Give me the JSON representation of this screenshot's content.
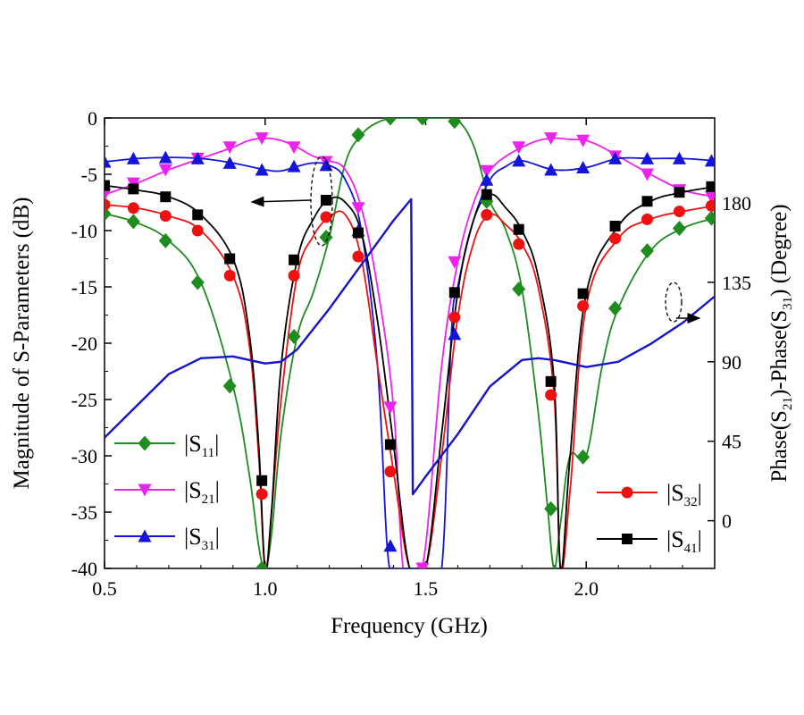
{
  "chart_data": {
    "type": "line",
    "title": "",
    "xlabel": "Frequency (GHz)",
    "ylabel_left": "Magnitude of S-Parameters (dB)",
    "ylabel_right_parts": {
      "a": "Phase(S",
      "a_sub": "21",
      "b": ")-Phase(S",
      "b_sub": "31",
      "c": ")  (Degree)"
    },
    "xlim": [
      0.5,
      2.4
    ],
    "ylim_left": [
      -40,
      0
    ],
    "ylim_right": [
      -27,
      228
    ],
    "x_ticks": [
      "0.5",
      "1.0",
      "1.5",
      "2.0"
    ],
    "x_tick_values": [
      0.5,
      1.0,
      1.5,
      2.0
    ],
    "y_left_ticks": [
      "0",
      "-5",
      "-10",
      "-15",
      "-20",
      "-25",
      "-30",
      "-35",
      "-40"
    ],
    "y_left_tick_values": [
      0,
      -5,
      -10,
      -15,
      -20,
      -25,
      -30,
      -35,
      -40
    ],
    "y_right_ticks": [
      "180",
      "135",
      "90",
      "45",
      "0"
    ],
    "y_right_tick_values": [
      180,
      135,
      90,
      45,
      0
    ],
    "series": [
      {
        "name": "|S11|",
        "label": "S",
        "sub": "11",
        "color": "#1e8c1e",
        "marker": "diamond",
        "axis": "left",
        "x": [
          0.5,
          0.6,
          0.7,
          0.8,
          0.9,
          0.95,
          0.98,
          1.0,
          1.02,
          1.05,
          1.1,
          1.15,
          1.2,
          1.25,
          1.3,
          1.35,
          1.4,
          1.45,
          1.5,
          1.55,
          1.6,
          1.65,
          1.7,
          1.75,
          1.8,
          1.85,
          1.88,
          1.9,
          1.92,
          1.95,
          2.0,
          2.05,
          2.1,
          2.2,
          2.3,
          2.4
        ],
        "y": [
          -8.5,
          -9.3,
          -10.9,
          -14.6,
          -23.8,
          -31.5,
          -38,
          -40,
          -37,
          -28,
          -19.4,
          -15.5,
          -10.6,
          -4,
          -1.5,
          -0.4,
          0,
          0,
          0,
          0,
          -0.2,
          -2.5,
          -7.4,
          -10,
          -15.2,
          -26,
          -34.7,
          -40,
          -36,
          -30,
          -30,
          -22,
          -16.9,
          -11.8,
          -9.8,
          -8.9
        ],
        "marker_x": [
          0.5,
          0.59,
          0.69,
          0.79,
          0.89,
          0.99,
          1.09,
          1.19,
          1.29,
          1.39,
          1.49,
          1.59,
          1.69,
          1.79,
          1.89,
          1.99,
          2.09,
          2.19,
          2.29,
          2.39
        ],
        "marker_y": [
          -8.5,
          -9.2,
          -10.9,
          -14.6,
          -23.8,
          -40,
          -19.4,
          -10.6,
          -1.5,
          0,
          0,
          -0.3,
          -7.4,
          -15.2,
          -34.7,
          -30.1,
          -16.9,
          -11.8,
          -9.8,
          -8.9
        ]
      },
      {
        "name": "|S21|",
        "label": "S",
        "sub": "21",
        "color": "#ee22ee",
        "marker": "triangle-down",
        "axis": "left",
        "x": [
          0.5,
          0.6,
          0.7,
          0.8,
          0.9,
          0.95,
          1.0,
          1.05,
          1.1,
          1.15,
          1.2,
          1.25,
          1.3,
          1.35,
          1.4,
          1.43,
          1.47,
          1.5,
          1.55,
          1.6,
          1.65,
          1.7,
          1.75,
          1.8,
          1.85,
          1.9,
          1.95,
          2.0,
          2.05,
          2.1,
          2.2,
          2.3,
          2.4
        ],
        "y": [
          -6.8,
          -5.8,
          -4.6,
          -3.6,
          -2.6,
          -2.0,
          -1.8,
          -2.0,
          -2.6,
          -3.4,
          -3.8,
          -4.6,
          -8,
          -15,
          -25.7,
          -40,
          -40,
          -38,
          -22,
          -12.8,
          -7.5,
          -4.7,
          -3.4,
          -2.6,
          -2.0,
          -1.8,
          -1.9,
          -2.0,
          -2.6,
          -3.4,
          -5.0,
          -6.4,
          -7.0
        ],
        "marker_x": [
          0.5,
          0.59,
          0.69,
          0.79,
          0.89,
          0.99,
          1.09,
          1.19,
          1.29,
          1.39,
          1.49,
          1.59,
          1.69,
          1.79,
          1.89,
          1.99,
          2.09,
          2.19,
          2.29,
          2.39
        ],
        "marker_y": [
          -6.8,
          -5.8,
          -4.6,
          -3.6,
          -2.6,
          -1.8,
          -2.6,
          -3.9,
          -8,
          -25.7,
          -40,
          -12.8,
          -4.7,
          -2.6,
          -1.8,
          -2.0,
          -3.4,
          -5.0,
          -6.4,
          -7.0
        ]
      },
      {
        "name": "|S31|",
        "label": "S",
        "sub": "31",
        "color": "#1414dc",
        "marker": "triangle-up",
        "axis": "left",
        "x": [
          0.5,
          0.6,
          0.7,
          0.8,
          0.9,
          1.0,
          1.05,
          1.1,
          1.15,
          1.2,
          1.25,
          1.3,
          1.35,
          1.38,
          1.4,
          1.43,
          1.5,
          1.55,
          1.58,
          1.6,
          1.65,
          1.7,
          1.75,
          1.8,
          1.9,
          2.0,
          2.1,
          2.2,
          2.3,
          2.4
        ],
        "y": [
          -3.9,
          -3.6,
          -3.5,
          -3.6,
          -4.0,
          -4.6,
          -4.7,
          -4.3,
          -4.0,
          -4.2,
          -5.5,
          -10,
          -22,
          -38,
          -40,
          -40,
          -40,
          -40,
          -19.2,
          -15,
          -9,
          -5.5,
          -4.3,
          -3.8,
          -4.6,
          -4.4,
          -3.6,
          -3.6,
          -3.6,
          -3.8
        ],
        "marker_x": [
          0.5,
          0.59,
          0.69,
          0.79,
          0.89,
          0.99,
          1.09,
          1.19,
          1.29,
          1.39,
          1.59,
          1.69,
          1.79,
          1.89,
          1.99,
          2.09,
          2.19,
          2.29,
          2.39
        ],
        "marker_y": [
          -3.9,
          -3.6,
          -3.5,
          -3.6,
          -4.0,
          -4.6,
          -4.3,
          -4.2,
          -10,
          -38,
          -19.2,
          -5.5,
          -3.8,
          -4.6,
          -4.4,
          -3.6,
          -3.6,
          -3.6,
          -3.8
        ]
      },
      {
        "name": "|S32|",
        "label": "S",
        "sub": "32",
        "color": "#ee1111",
        "marker": "circle",
        "axis": "left",
        "x": [
          0.5,
          0.6,
          0.7,
          0.8,
          0.9,
          0.95,
          0.98,
          1.0,
          1.02,
          1.05,
          1.1,
          1.15,
          1.2,
          1.25,
          1.3,
          1.35,
          1.4,
          1.45,
          1.5,
          1.55,
          1.6,
          1.65,
          1.7,
          1.75,
          1.8,
          1.85,
          1.9,
          1.92,
          1.95,
          2.0,
          2.1,
          2.2,
          2.3,
          2.4
        ],
        "y": [
          -7.7,
          -8.0,
          -8.7,
          -10.0,
          -14.0,
          -20,
          -30,
          -40,
          -35,
          -25,
          -14.0,
          -10.5,
          -8.8,
          -8.6,
          -12.5,
          -22,
          -31.4,
          -40,
          -40,
          -30,
          -17.7,
          -11,
          -8.6,
          -9.5,
          -11.2,
          -15,
          -24.6,
          -40,
          -33,
          -16.7,
          -10.7,
          -9.0,
          -8.3,
          -7.8
        ],
        "marker_x": [
          0.5,
          0.59,
          0.69,
          0.79,
          0.89,
          0.99,
          1.09,
          1.19,
          1.29,
          1.39,
          1.59,
          1.69,
          1.79,
          1.89,
          1.99,
          2.09,
          2.19,
          2.29,
          2.39
        ],
        "marker_y": [
          -7.7,
          -8.0,
          -8.7,
          -10.0,
          -14.0,
          -33.4,
          -14.0,
          -8.8,
          -12.3,
          -31.4,
          -17.7,
          -8.6,
          -11.2,
          -24.6,
          -16.7,
          -10.7,
          -9.0,
          -8.3,
          -7.8
        ]
      },
      {
        "name": "|S41|",
        "label": "S",
        "sub": "41",
        "color": "#000000",
        "marker": "square",
        "axis": "left",
        "x": [
          0.5,
          0.6,
          0.7,
          0.8,
          0.9,
          0.95,
          0.98,
          1.0,
          1.02,
          1.05,
          1.1,
          1.15,
          1.2,
          1.25,
          1.3,
          1.35,
          1.4,
          1.45,
          1.5,
          1.55,
          1.6,
          1.65,
          1.7,
          1.75,
          1.8,
          1.85,
          1.9,
          1.92,
          1.95,
          2.0,
          2.1,
          2.2,
          2.3,
          2.4
        ],
        "y": [
          -6.0,
          -6.4,
          -7.0,
          -8.6,
          -12.5,
          -19,
          -29,
          -40,
          -35,
          -22,
          -12.6,
          -9.0,
          -7.2,
          -7.5,
          -10.2,
          -18,
          -29,
          -40,
          -40,
          -28,
          -15.5,
          -9,
          -6.8,
          -8,
          -10,
          -14,
          -23.4,
          -40,
          -30,
          -15.6,
          -9.6,
          -7.4,
          -6.6,
          -6.1
        ],
        "marker_x": [
          0.5,
          0.59,
          0.69,
          0.79,
          0.89,
          0.99,
          1.09,
          1.19,
          1.29,
          1.39,
          1.59,
          1.69,
          1.79,
          1.89,
          1.99,
          2.09,
          2.19,
          2.29,
          2.39
        ],
        "marker_y": [
          -6.0,
          -6.3,
          -7.0,
          -8.6,
          -12.5,
          -32.2,
          -12.6,
          -7.3,
          -10.2,
          -29.0,
          -15.5,
          -6.8,
          -9.9,
          -23.4,
          -15.6,
          -9.6,
          -7.4,
          -6.6,
          -6.1
        ]
      },
      {
        "name": "Phase difference",
        "color": "#1414c8",
        "axis": "right",
        "x": [
          0.5,
          0.6,
          0.7,
          0.8,
          0.9,
          1.0,
          1.05,
          1.1,
          1.2,
          1.3,
          1.4,
          1.455,
          1.46,
          1.5,
          1.55,
          1.6,
          1.7,
          1.8,
          1.85,
          1.9,
          2.0,
          2.1,
          2.2,
          2.3,
          2.4
        ],
        "y": [
          47,
          65,
          83,
          92,
          93,
          89,
          90,
          97,
          120,
          145,
          170,
          182,
          15,
          25,
          37,
          49,
          76,
          91,
          92,
          91,
          87,
          90,
          100,
          112,
          127
        ]
      }
    ],
    "legend_left": [
      "|S11|",
      "|S21|",
      "|S31|"
    ],
    "legend_right": [
      "|S32|",
      "|S41|"
    ],
    "annotations": [
      "dashed ellipse with arrow pointing to left axis",
      "dashed ellipse with arrow pointing to right axis"
    ]
  }
}
